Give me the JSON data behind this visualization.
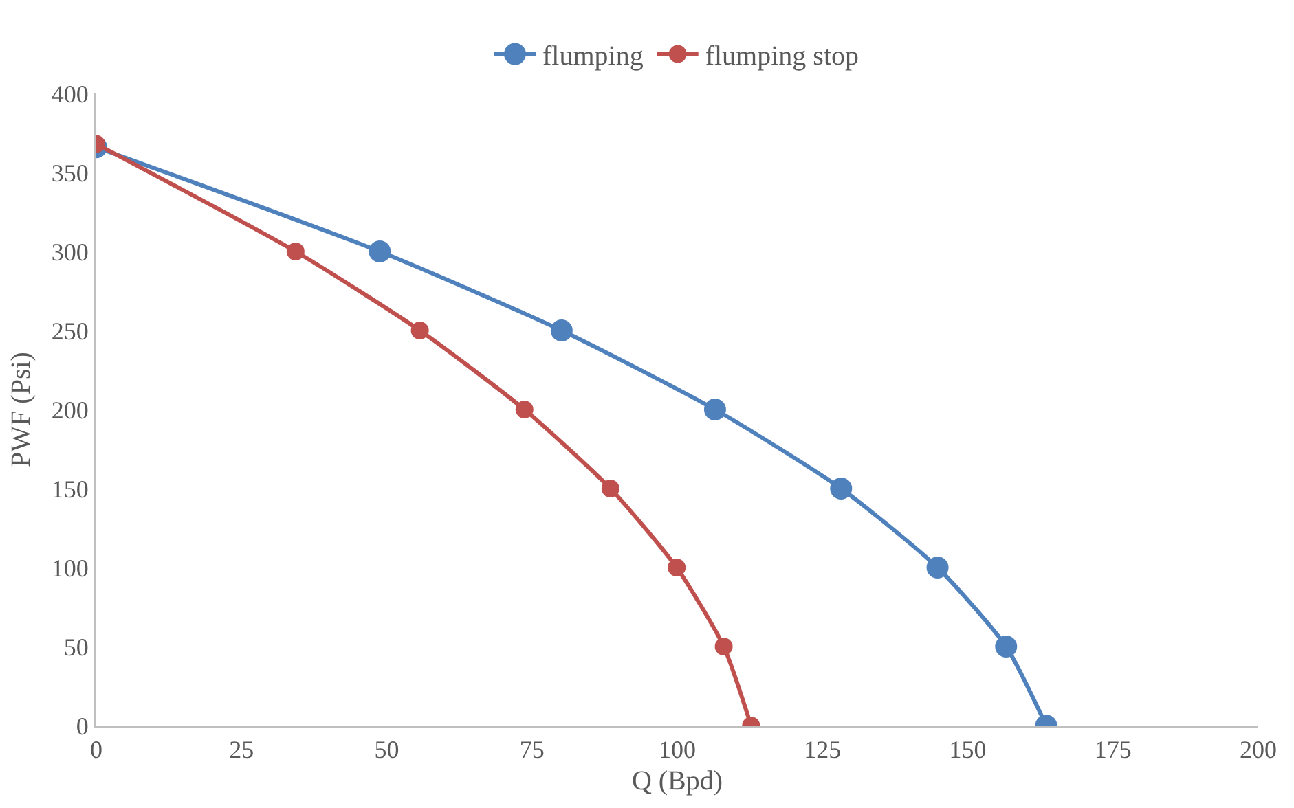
{
  "chart_data": {
    "type": "line",
    "xlabel": "Q (Bpd)",
    "ylabel": "PWF (Psi)",
    "xlim": [
      0,
      200
    ],
    "xticks": [
      0,
      25,
      50,
      75,
      100,
      125,
      150,
      175,
      200
    ],
    "ylim": [
      0,
      400
    ],
    "yticks": [
      0,
      50,
      100,
      150,
      200,
      250,
      300,
      350,
      400
    ],
    "grid": false,
    "legend": "top",
    "marker": "circle",
    "line_style": "solid",
    "series": [
      {
        "name": "flumping",
        "color": "#4f81bd",
        "x": [
          0,
          48.8,
          80.1,
          106.5,
          128.2,
          144.8,
          156.6,
          163.5
        ],
        "values": [
          366,
          300,
          250,
          200,
          150,
          100,
          50,
          0
        ]
      },
      {
        "name": "flumping stop",
        "color": "#c0504d",
        "x": [
          0,
          34.3,
          55.7,
          73.7,
          88.5,
          99.9,
          108.0,
          112.7
        ],
        "values": [
          368,
          300,
          250,
          200,
          150,
          100,
          50,
          0
        ]
      }
    ]
  }
}
